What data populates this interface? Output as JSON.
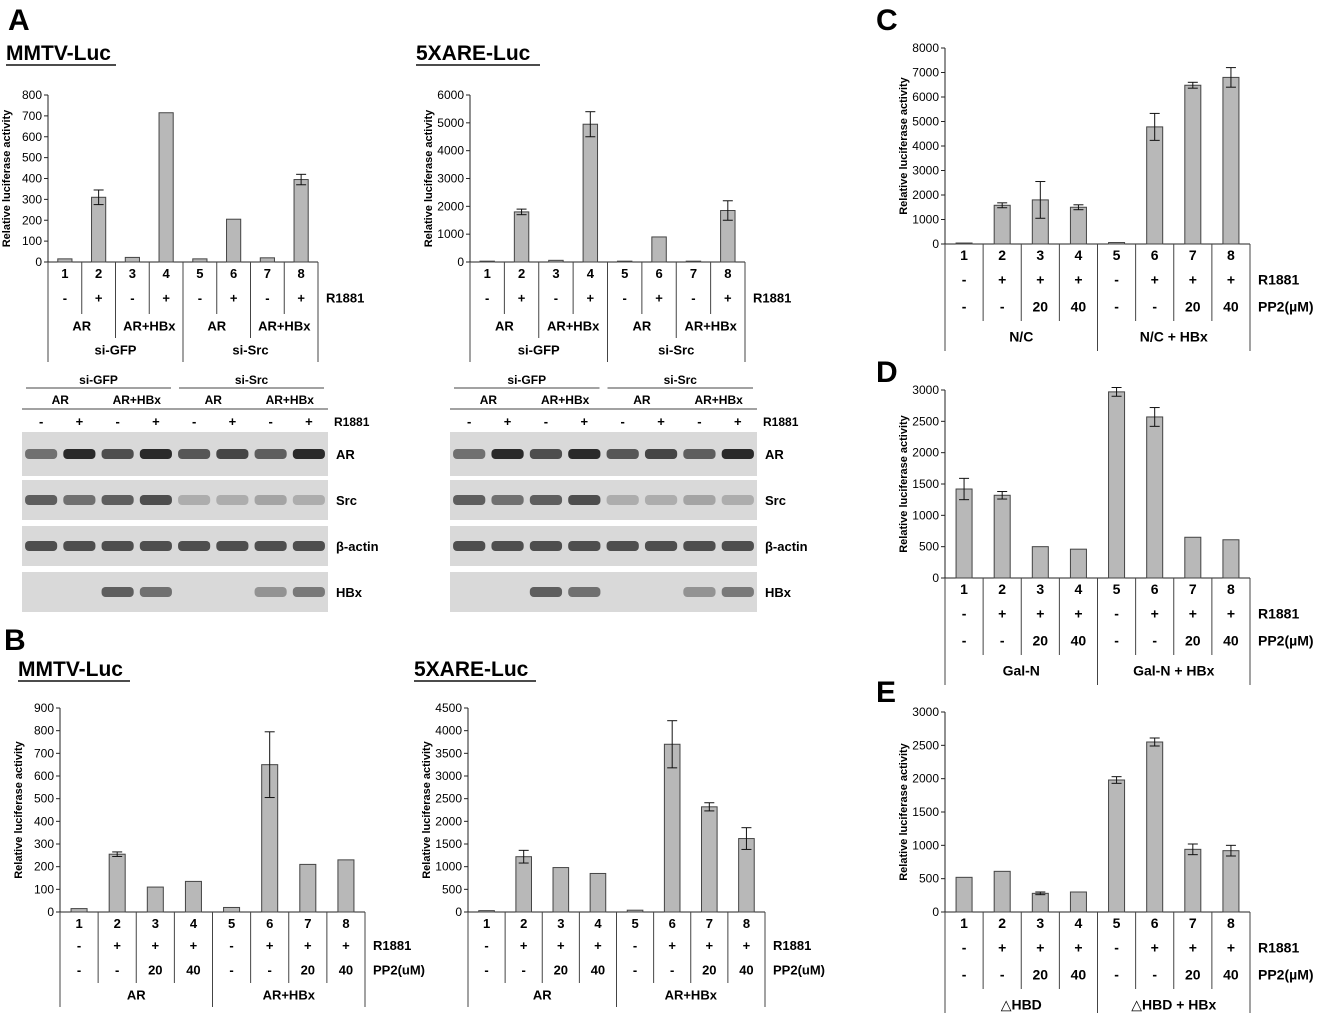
{
  "panels": {
    "A": {
      "letter": "A",
      "charts": [
        {
          "type": "bar",
          "title": "MMTV-Luc",
          "ylabel": "Relative luciferase activity",
          "ylim": [
            0,
            800
          ],
          "yticks": [
            0,
            100,
            200,
            300,
            400,
            500,
            600,
            700,
            800
          ],
          "categories": [
            "1",
            "2",
            "3",
            "4",
            "5",
            "6",
            "7",
            "8"
          ],
          "values": [
            15,
            310,
            22,
            715,
            15,
            205,
            20,
            395
          ],
          "errors": [
            0,
            35,
            0,
            0,
            0,
            0,
            0,
            25
          ],
          "rows": [
            {
              "label": "R1881",
              "cells": [
                "-",
                "+",
                "-",
                "+",
                "-",
                "+",
                "-",
                "+"
              ]
            }
          ],
          "groups": [
            {
              "label": "AR",
              "span": [
                0,
                1
              ]
            },
            {
              "label": "AR+HBx",
              "span": [
                2,
                3
              ]
            },
            {
              "label": "AR",
              "span": [
                4,
                5
              ]
            },
            {
              "label": "AR+HBx",
              "span": [
                6,
                7
              ]
            }
          ],
          "supergroups": [
            {
              "label": "si-GFP",
              "span": [
                0,
                3
              ]
            },
            {
              "label": "si-Src",
              "span": [
                4,
                7
              ]
            }
          ]
        },
        {
          "type": "bar",
          "title": "5XARE-Luc",
          "ylabel": "Relative luciferase activity",
          "ylim": [
            0,
            6000
          ],
          "yticks": [
            0,
            1000,
            2000,
            3000,
            4000,
            5000,
            6000
          ],
          "categories": [
            "1",
            "2",
            "3",
            "4",
            "5",
            "6",
            "7",
            "8"
          ],
          "values": [
            30,
            1800,
            60,
            4950,
            30,
            900,
            30,
            1850
          ],
          "errors": [
            0,
            100,
            0,
            450,
            0,
            0,
            0,
            350
          ],
          "rows": [
            {
              "label": "R1881",
              "cells": [
                "-",
                "+",
                "-",
                "+",
                "-",
                "+",
                "-",
                "+"
              ]
            }
          ],
          "groups": [
            {
              "label": "AR",
              "span": [
                0,
                1
              ]
            },
            {
              "label": "AR+HBx",
              "span": [
                2,
                3
              ]
            },
            {
              "label": "AR",
              "span": [
                4,
                5
              ]
            },
            {
              "label": "AR+HBx",
              "span": [
                6,
                7
              ]
            }
          ],
          "supergroups": [
            {
              "label": "si-GFP",
              "span": [
                0,
                3
              ]
            },
            {
              "label": "si-Src",
              "span": [
                4,
                7
              ]
            }
          ]
        }
      ],
      "blots": [
        {
          "group_labels": [
            "si-GFP",
            "si-Src"
          ],
          "lane_groups": [
            "AR",
            "AR+HBx",
            "AR",
            "AR+HBx"
          ],
          "r1881_label": "R1881",
          "r1881": [
            "-",
            "+",
            "-",
            "+",
            "-",
            "+",
            "-",
            "+"
          ],
          "bands": [
            "AR",
            "Src",
            "β-actin",
            "HBx"
          ]
        },
        {
          "group_labels": [
            "si-GFP",
            "si-Src"
          ],
          "lane_groups": [
            "AR",
            "AR+HBx",
            "AR",
            "AR+HBx"
          ],
          "r1881_label": "R1881",
          "r1881": [
            "-",
            "+",
            "-",
            "+",
            "-",
            "+",
            "-",
            "+"
          ],
          "bands": [
            "AR",
            "Src",
            "β-actin",
            "HBx"
          ]
        }
      ]
    },
    "B": {
      "letter": "B",
      "charts": [
        {
          "type": "bar",
          "title": "MMTV-Luc",
          "ylabel": "Relative luciferase activity",
          "ylim": [
            0,
            900
          ],
          "yticks": [
            0,
            100,
            200,
            300,
            400,
            500,
            600,
            700,
            800,
            900
          ],
          "categories": [
            "1",
            "2",
            "3",
            "4",
            "5",
            "6",
            "7",
            "8"
          ],
          "values": [
            15,
            255,
            110,
            135,
            20,
            650,
            210,
            230
          ],
          "errors": [
            0,
            10,
            0,
            0,
            0,
            145,
            0,
            0
          ],
          "rows": [
            {
              "label": "R1881",
              "cells": [
                "-",
                "+",
                "+",
                "+",
                "-",
                "+",
                "+",
                "+"
              ]
            },
            {
              "label": "PP2(uM)",
              "cells": [
                "-",
                "-",
                "20",
                "40",
                "-",
                "-",
                "20",
                "40"
              ]
            }
          ],
          "groups": [
            {
              "label": "AR",
              "span": [
                0,
                3
              ]
            },
            {
              "label": "AR+HBx",
              "span": [
                4,
                7
              ]
            }
          ],
          "supergroups": []
        },
        {
          "type": "bar",
          "title": "5XARE-Luc",
          "ylabel": "Relative luciferase activity",
          "ylim": [
            0,
            4500
          ],
          "yticks": [
            0,
            500,
            1000,
            1500,
            2000,
            2500,
            3000,
            3500,
            4000,
            4500
          ],
          "categories": [
            "1",
            "2",
            "3",
            "4",
            "5",
            "6",
            "7",
            "8"
          ],
          "values": [
            30,
            1220,
            980,
            850,
            40,
            3700,
            2320,
            1620
          ],
          "errors": [
            0,
            140,
            0,
            0,
            0,
            520,
            90,
            240
          ],
          "rows": [
            {
              "label": "R1881",
              "cells": [
                "-",
                "+",
                "+",
                "+",
                "-",
                "+",
                "+",
                "+"
              ]
            },
            {
              "label": "PP2(uM)",
              "cells": [
                "-",
                "-",
                "20",
                "40",
                "-",
                "-",
                "20",
                "40"
              ]
            }
          ],
          "groups": [
            {
              "label": "AR",
              "span": [
                0,
                3
              ]
            },
            {
              "label": "AR+HBx",
              "span": [
                4,
                7
              ]
            }
          ],
          "supergroups": []
        }
      ]
    },
    "C": {
      "letter": "C",
      "charts": [
        {
          "type": "bar",
          "title": "",
          "ylabel": "Relative luciferase activity",
          "ylim": [
            0,
            8000
          ],
          "yticks": [
            0,
            1000,
            2000,
            3000,
            4000,
            5000,
            6000,
            7000,
            8000
          ],
          "categories": [
            "1",
            "2",
            "3",
            "4",
            "5",
            "6",
            "7",
            "8"
          ],
          "values": [
            40,
            1580,
            1800,
            1500,
            60,
            4780,
            6480,
            6800
          ],
          "errors": [
            0,
            100,
            750,
            100,
            0,
            550,
            120,
            400
          ],
          "rows": [
            {
              "label": "R1881",
              "cells": [
                "-",
                "+",
                "+",
                "+",
                "-",
                "+",
                "+",
                "+"
              ]
            },
            {
              "label": "PP2(µM)",
              "cells": [
                "-",
                "-",
                "20",
                "40",
                "-",
                "-",
                "20",
                "40"
              ]
            }
          ],
          "groups": [
            {
              "label": "N/C",
              "span": [
                0,
                3
              ]
            },
            {
              "label": "N/C + HBx",
              "span": [
                4,
                7
              ]
            }
          ],
          "supergroups": []
        }
      ]
    },
    "D": {
      "letter": "D",
      "charts": [
        {
          "type": "bar",
          "title": "",
          "ylabel": "Relative luciferase activity",
          "ylim": [
            0,
            3000
          ],
          "yticks": [
            0,
            500,
            1000,
            1500,
            2000,
            2500,
            3000
          ],
          "categories": [
            "1",
            "2",
            "3",
            "4",
            "5",
            "6",
            "7",
            "8"
          ],
          "values": [
            1420,
            1320,
            500,
            460,
            2970,
            2570,
            650,
            610
          ],
          "errors": [
            170,
            60,
            0,
            0,
            70,
            150,
            0,
            0
          ],
          "rows": [
            {
              "label": "R1881",
              "cells": [
                "-",
                "+",
                "+",
                "+",
                "-",
                "+",
                "+",
                "+"
              ]
            },
            {
              "label": "PP2(µM)",
              "cells": [
                "-",
                "-",
                "20",
                "40",
                "-",
                "-",
                "20",
                "40"
              ]
            }
          ],
          "groups": [
            {
              "label": "Gal-N",
              "span": [
                0,
                3
              ]
            },
            {
              "label": "Gal-N + HBx",
              "span": [
                4,
                7
              ]
            }
          ],
          "supergroups": []
        }
      ]
    },
    "E": {
      "letter": "E",
      "charts": [
        {
          "type": "bar",
          "title": "",
          "ylabel": "Relative luciferase activity",
          "ylim": [
            0,
            3000
          ],
          "yticks": [
            0,
            500,
            1000,
            1500,
            2000,
            2500,
            3000
          ],
          "categories": [
            "1",
            "2",
            "3",
            "4",
            "5",
            "6",
            "7",
            "8"
          ],
          "values": [
            520,
            610,
            280,
            300,
            1980,
            2550,
            940,
            920
          ],
          "errors": [
            0,
            0,
            20,
            0,
            50,
            60,
            80,
            80
          ],
          "rows": [
            {
              "label": "R1881",
              "cells": [
                "-",
                "+",
                "+",
                "+",
                "-",
                "+",
                "+",
                "+"
              ]
            },
            {
              "label": "PP2(µM)",
              "cells": [
                "-",
                "-",
                "20",
                "40",
                "-",
                "-",
                "20",
                "40"
              ]
            }
          ],
          "groups": [
            {
              "label": "△HBD",
              "span": [
                0,
                3
              ]
            },
            {
              "label": "△HBD + HBx",
              "span": [
                4,
                7
              ]
            }
          ],
          "supergroups": []
        }
      ]
    }
  },
  "colors": {
    "bar": "#b8b8b8",
    "bar_stroke": "#444444",
    "blot_bg": "#d9d9d9",
    "band": "#2a2a2a"
  },
  "chart_data": [
    {
      "panel": "A",
      "type": "bar",
      "title": "MMTV-Luc",
      "ylabel": "Relative luciferase activity",
      "ylim": [
        0,
        800
      ],
      "categories": [
        "1",
        "2",
        "3",
        "4",
        "5",
        "6",
        "7",
        "8"
      ],
      "values": [
        15,
        310,
        22,
        715,
        15,
        205,
        20,
        395
      ]
    },
    {
      "panel": "A",
      "type": "bar",
      "title": "5XARE-Luc",
      "ylabel": "Relative luciferase activity",
      "ylim": [
        0,
        6000
      ],
      "categories": [
        "1",
        "2",
        "3",
        "4",
        "5",
        "6",
        "7",
        "8"
      ],
      "values": [
        30,
        1800,
        60,
        4950,
        30,
        900,
        30,
        1850
      ]
    },
    {
      "panel": "B",
      "type": "bar",
      "title": "MMTV-Luc",
      "ylabel": "Relative luciferase activity",
      "ylim": [
        0,
        900
      ],
      "categories": [
        "1",
        "2",
        "3",
        "4",
        "5",
        "6",
        "7",
        "8"
      ],
      "values": [
        15,
        255,
        110,
        135,
        20,
        650,
        210,
        230
      ]
    },
    {
      "panel": "B",
      "type": "bar",
      "title": "5XARE-Luc",
      "ylabel": "Relative luciferase activity",
      "ylim": [
        0,
        4500
      ],
      "categories": [
        "1",
        "2",
        "3",
        "4",
        "5",
        "6",
        "7",
        "8"
      ],
      "values": [
        30,
        1220,
        980,
        850,
        40,
        3700,
        2320,
        1620
      ]
    },
    {
      "panel": "C",
      "type": "bar",
      "ylabel": "Relative luciferase activity",
      "ylim": [
        0,
        8000
      ],
      "categories": [
        "1",
        "2",
        "3",
        "4",
        "5",
        "6",
        "7",
        "8"
      ],
      "values": [
        40,
        1580,
        1800,
        1500,
        60,
        4780,
        6480,
        6800
      ]
    },
    {
      "panel": "D",
      "type": "bar",
      "ylabel": "Relative luciferase activity",
      "ylim": [
        0,
        3000
      ],
      "categories": [
        "1",
        "2",
        "3",
        "4",
        "5",
        "6",
        "7",
        "8"
      ],
      "values": [
        1420,
        1320,
        500,
        460,
        2970,
        2570,
        650,
        610
      ]
    },
    {
      "panel": "E",
      "type": "bar",
      "ylabel": "Relative luciferase activity",
      "ylim": [
        0,
        3000
      ],
      "categories": [
        "1",
        "2",
        "3",
        "4",
        "5",
        "6",
        "7",
        "8"
      ],
      "values": [
        520,
        610,
        280,
        300,
        1980,
        2550,
        940,
        920
      ]
    }
  ]
}
